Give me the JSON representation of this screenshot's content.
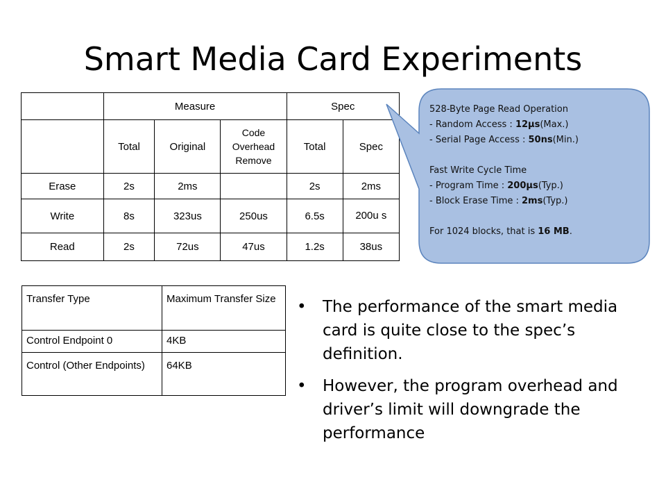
{
  "title": "Smart Media Card Experiments",
  "perf_table": {
    "header_row1": [
      "",
      "Measure",
      "Spec"
    ],
    "header_row2": [
      "",
      "Total",
      "Original",
      "Code Overhead Remove",
      "Total",
      "Spec"
    ],
    "rows": [
      [
        "Erase",
        "2s",
        "2ms",
        "",
        "2s",
        "2ms"
      ],
      [
        "Write",
        "8s",
        "323us",
        "250us",
        "6.5s",
        "200u s"
      ],
      [
        "Read",
        "2s",
        "72us",
        "47us",
        "1.2s",
        "38us"
      ]
    ]
  },
  "transfer_table": {
    "headers": [
      "Transfer Type",
      "Maximum Transfer Size"
    ],
    "rows": [
      [
        "Control Endpoint 0",
        "4KB"
      ],
      [
        "Control (Other Endpoints)",
        "64KB"
      ]
    ]
  },
  "callout": {
    "fill_color": "#a9c0e2",
    "border_color": "#5b84bd",
    "lines": [
      "528-Byte Page Read Operation",
      "- Random Access : 12µs(Max.)",
      "- Serial Page Access : 50ns(Min.)",
      "",
      "Fast Write Cycle Time",
      "- Program Time : 200µs(Typ.)",
      "- Block Erase Time : 2ms(Typ.)",
      "",
      "For 1024 blocks, that is 16 MB."
    ]
  },
  "bullets": [
    "The performance of the smart media card is quite close to the spec’s definition.",
    "However, the program overhead and driver’s limit will downgrade the performance"
  ],
  "bullet_glyph": "•"
}
